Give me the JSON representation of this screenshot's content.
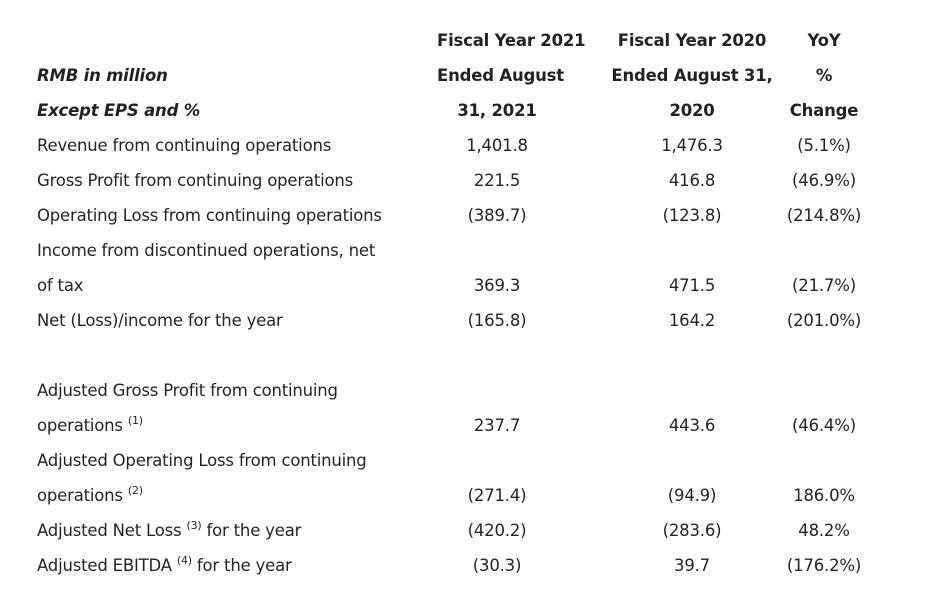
{
  "header": {
    "label_lines": [
      "",
      "RMB in million",
      "Except EPS and %"
    ],
    "col1_lines": [
      "Fiscal Year 2021",
      "Ended August",
      "31, 2021"
    ],
    "col2_lines": [
      "Fiscal Year 2020",
      "Ended August 31,",
      "2020"
    ],
    "col3_lines": [
      "YoY",
      "%",
      "Change"
    ]
  },
  "rows": [
    {
      "label": "Revenue from continuing operations",
      "fy2021": "1,401.8",
      "fy2020": "1,476.3",
      "yoy": "(5.1%)"
    },
    {
      "label": "Gross Profit from continuing operations",
      "fy2021": "221.5",
      "fy2020": "416.8",
      "yoy": "(46.9%)"
    },
    {
      "label": "Operating Loss from continuing operations",
      "fy2021": "(389.7)",
      "fy2020": "(123.8)",
      "yoy": "(214.8%)"
    },
    {
      "label": "Income from discontinued operations, net",
      "fy2021": "",
      "fy2020": "",
      "yoy": ""
    },
    {
      "label": "of tax",
      "fy2021": "369.3",
      "fy2020": "471.5",
      "yoy": "(21.7%)"
    },
    {
      "label": "Net (Loss)/income for the year",
      "fy2021": "(165.8)",
      "fy2020": "164.2",
      "yoy": "(201.0%)"
    },
    {
      "label": "",
      "fy2021": "",
      "fy2020": "",
      "yoy": ""
    },
    {
      "label": "Adjusted Gross Profit from continuing",
      "fy2021": "",
      "fy2020": "",
      "yoy": ""
    },
    {
      "label": "operations",
      "sup": "(1)",
      "label_after": "",
      "fy2021": "237.7",
      "fy2020": "443.6",
      "yoy": "(46.4%)"
    },
    {
      "label": "Adjusted Operating Loss from continuing",
      "fy2021": "",
      "fy2020": "",
      "yoy": ""
    },
    {
      "label": "operations",
      "sup": "(2)",
      "label_after": "",
      "fy2021": "(271.4)",
      "fy2020": "(94.9)",
      "yoy": "186.0%"
    },
    {
      "label": "Adjusted Net Loss",
      "sup": "(3)",
      "label_after": "for the year",
      "fy2021": "(420.2)",
      "fy2020": "(283.6)",
      "yoy": "48.2%"
    },
    {
      "label": "Adjusted EBITDA",
      "sup": "(4)",
      "label_after": "for the year",
      "fy2021": "(30.3)",
      "fy2020": "39.7",
      "yoy": "(176.2%)"
    }
  ]
}
